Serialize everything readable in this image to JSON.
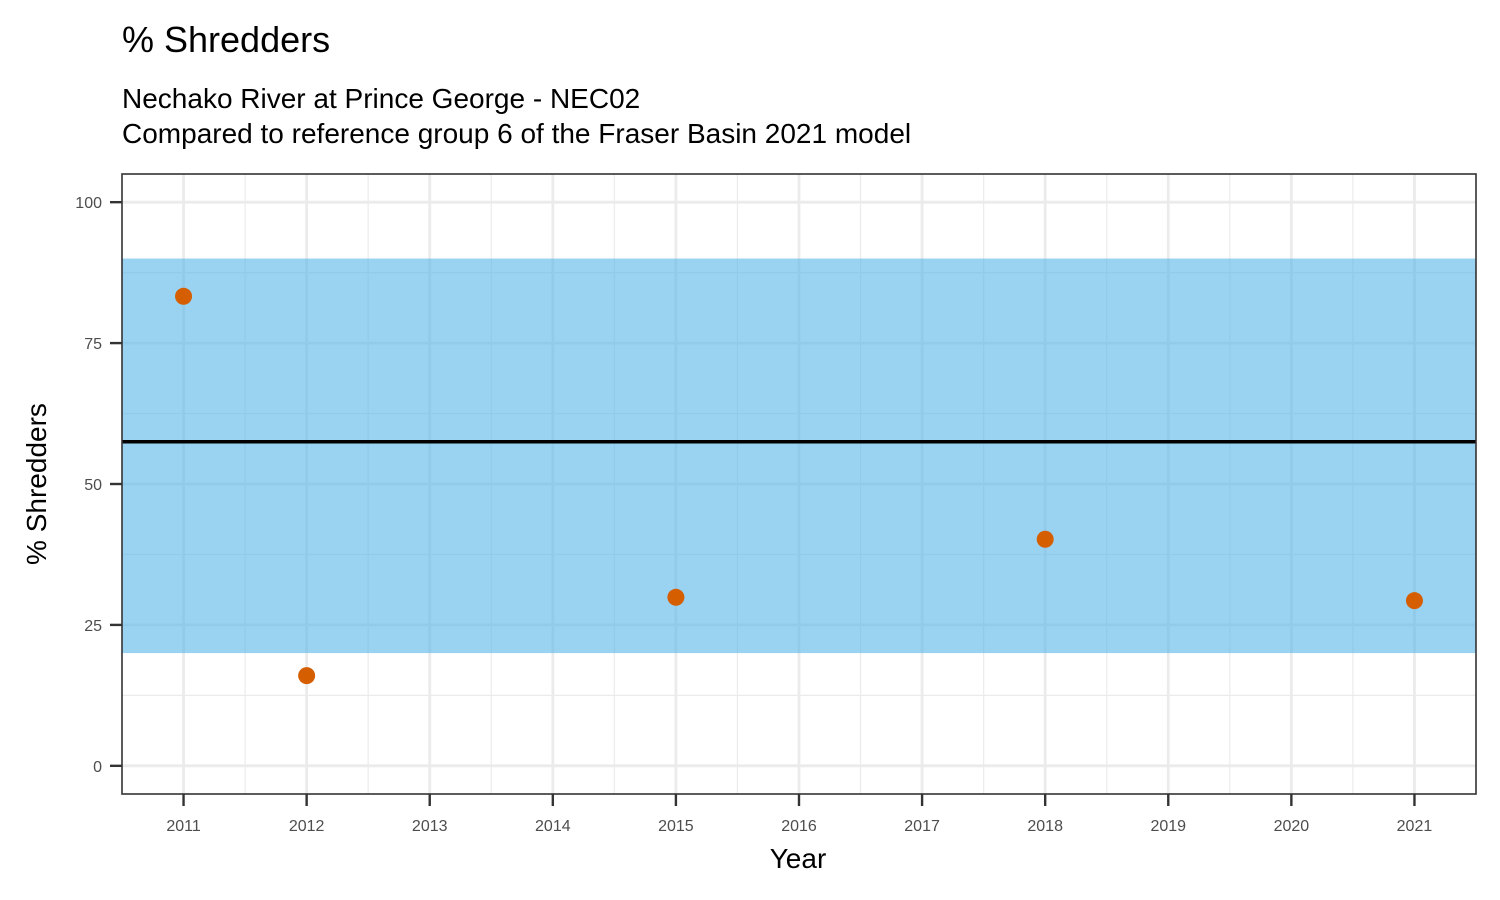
{
  "chart_data": {
    "type": "scatter",
    "title": "% Shredders",
    "subtitle_lines": [
      "Nechako River at Prince George - NEC02",
      "Compared to reference group 6 of the Fraser Basin 2021 model"
    ],
    "xlabel": "Year",
    "ylabel": "% Shredders",
    "x_categories": [
      "2011",
      "2012",
      "2013",
      "2014",
      "2015",
      "2016",
      "2017",
      "2018",
      "2019",
      "2020",
      "2021"
    ],
    "y_ticks": [
      0,
      25,
      50,
      75,
      100
    ],
    "ylim": [
      -5,
      105
    ],
    "points": [
      {
        "x": "2011",
        "y": 83.3
      },
      {
        "x": "2012",
        "y": 16.0
      },
      {
        "x": "2015",
        "y": 29.9
      },
      {
        "x": "2018",
        "y": 40.2
      },
      {
        "x": "2021",
        "y": 29.3
      }
    ],
    "reference_band": {
      "low": 20,
      "high": 90
    },
    "reference_line": 57.5,
    "grid": true,
    "colors": {
      "points": "#d55e00",
      "band": "#56b4e9",
      "reference_line": "#000000",
      "grid": "#ebebeb",
      "panel_border": "#333333"
    }
  }
}
